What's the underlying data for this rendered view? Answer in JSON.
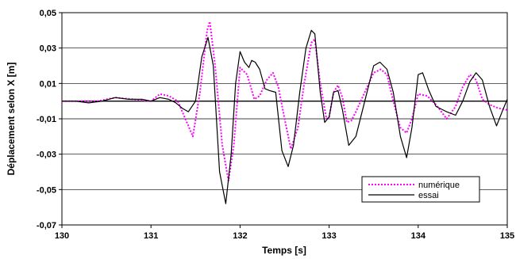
{
  "chart_data": {
    "type": "line",
    "title": "",
    "xlabel": "Temps [s]",
    "ylabel": "Déplacement selon X [m]",
    "xlim": [
      130,
      135
    ],
    "ylim": [
      -0.07,
      0.05
    ],
    "xticks": [
      130,
      131,
      132,
      133,
      134,
      135
    ],
    "xtick_labels": [
      "130",
      "131",
      "132",
      "133",
      "134",
      "135"
    ],
    "yticks": [
      0.05,
      0.03,
      0.01,
      -0.01,
      -0.03,
      -0.05,
      -0.07
    ],
    "ytick_labels": [
      "0,05",
      "0,03",
      "0,01",
      "-0,01",
      "-0,03",
      "-0,05",
      "-0,07"
    ],
    "grid": "horizontal",
    "legend_position": "bottom-right",
    "reference_line": 0.0,
    "series": [
      {
        "name": "numérique",
        "color": "#ff00ff",
        "style": "dotted",
        "x": [
          130.0,
          130.2,
          130.4,
          130.6,
          130.8,
          131.0,
          131.1,
          131.2,
          131.3,
          131.42,
          131.47,
          131.55,
          131.63,
          131.66,
          131.72,
          131.8,
          131.87,
          131.93,
          132.0,
          132.08,
          132.16,
          132.22,
          132.3,
          132.37,
          132.43,
          132.5,
          132.57,
          132.65,
          132.72,
          132.8,
          132.84,
          132.9,
          132.97,
          133.0,
          133.05,
          133.1,
          133.15,
          133.2,
          133.25,
          133.3,
          133.4,
          133.5,
          133.58,
          133.65,
          133.72,
          133.8,
          133.87,
          133.93,
          134.0,
          134.1,
          134.2,
          134.32,
          134.42,
          134.5,
          134.58,
          134.65,
          134.72,
          134.8,
          134.9,
          135.0
        ],
        "y": [
          0.0,
          0.0,
          0.0,
          0.002,
          0.001,
          0.0,
          0.004,
          0.003,
          0.0,
          -0.014,
          -0.02,
          0.005,
          0.04,
          0.045,
          0.02,
          -0.025,
          -0.045,
          -0.025,
          0.019,
          0.015,
          0.001,
          0.003,
          0.012,
          0.016,
          0.008,
          -0.01,
          -0.027,
          -0.015,
          0.01,
          0.033,
          0.035,
          0.01,
          -0.01,
          -0.009,
          0.005,
          0.009,
          0.002,
          -0.012,
          -0.011,
          -0.006,
          0.005,
          0.016,
          0.018,
          0.015,
          0.0,
          -0.015,
          -0.018,
          -0.01,
          0.004,
          0.003,
          -0.002,
          -0.01,
          -0.003,
          0.008,
          0.015,
          0.012,
          0.001,
          -0.002,
          -0.004,
          -0.005
        ]
      },
      {
        "name": "essai",
        "color": "#000000",
        "style": "solid",
        "x": [
          130.0,
          130.15,
          130.3,
          130.45,
          130.6,
          130.75,
          130.9,
          131.0,
          131.1,
          131.2,
          131.28,
          131.35,
          131.42,
          131.5,
          131.57,
          131.64,
          131.7,
          131.77,
          131.84,
          131.9,
          131.95,
          132.0,
          132.05,
          132.1,
          132.13,
          132.17,
          132.22,
          132.28,
          132.33,
          132.4,
          132.47,
          132.54,
          132.6,
          132.67,
          132.74,
          132.8,
          132.84,
          132.9,
          132.95,
          133.0,
          133.05,
          133.1,
          133.15,
          133.22,
          133.3,
          133.4,
          133.5,
          133.57,
          133.65,
          133.72,
          133.8,
          133.87,
          133.93,
          134.0,
          134.05,
          134.12,
          134.2,
          134.32,
          134.42,
          134.5,
          134.58,
          134.65,
          134.72,
          134.8,
          134.88,
          134.95,
          135.0
        ],
        "y": [
          0.0,
          0.0,
          -0.001,
          0.0,
          0.002,
          0.001,
          0.001,
          0.0,
          0.002,
          0.001,
          -0.001,
          -0.004,
          -0.006,
          0.0,
          0.025,
          0.036,
          0.02,
          -0.04,
          -0.058,
          -0.03,
          0.01,
          0.028,
          0.022,
          0.019,
          0.023,
          0.022,
          0.018,
          0.007,
          0.006,
          0.005,
          -0.028,
          -0.037,
          -0.025,
          0.005,
          0.03,
          0.04,
          0.038,
          0.005,
          -0.012,
          -0.009,
          0.005,
          0.006,
          -0.005,
          -0.025,
          -0.02,
          0.0,
          0.02,
          0.022,
          0.018,
          0.005,
          -0.02,
          -0.032,
          -0.015,
          0.015,
          0.016,
          0.006,
          -0.003,
          -0.006,
          -0.008,
          0.0,
          0.011,
          0.016,
          0.012,
          -0.003,
          -0.014,
          -0.005,
          0.001
        ]
      }
    ]
  }
}
